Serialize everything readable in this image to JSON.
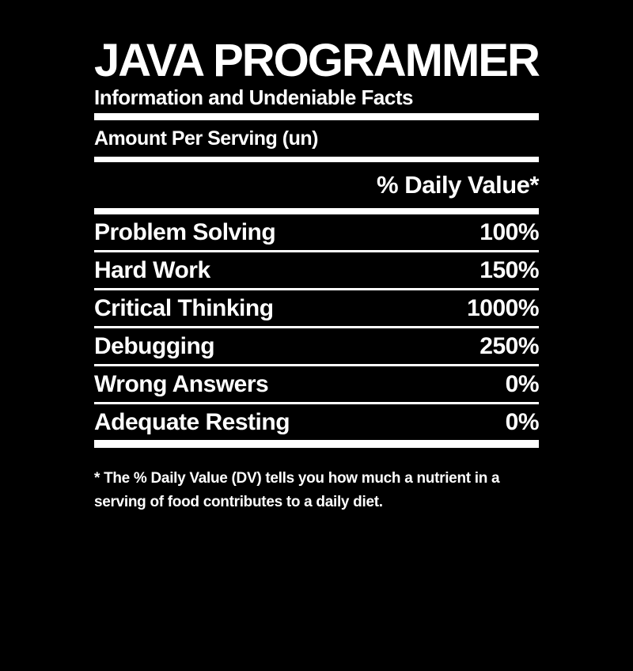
{
  "label": {
    "title": "JAVA PROGRAMMER",
    "subtitle": "Information and Undeniable Facts",
    "serving_line": "Amount Per Serving (un)",
    "daily_value_header": "% Daily Value*",
    "rows": [
      {
        "name": "Problem Solving",
        "value": "100%"
      },
      {
        "name": "Hard Work",
        "value": "150%"
      },
      {
        "name": "Critical Thinking",
        "value": "1000%"
      },
      {
        "name": "Debugging",
        "value": "250%"
      },
      {
        "name": "Wrong Answers",
        "value": "0%"
      },
      {
        "name": "Adequate Resting",
        "value": "0%"
      }
    ],
    "footnote_line1": "* The % Daily Value (DV) tells you how much a nutrient in a",
    "footnote_line2": "serving of food contributes to a daily diet.",
    "colors": {
      "background": "#000000",
      "text": "#ffffff",
      "divider": "#ffffff"
    }
  }
}
